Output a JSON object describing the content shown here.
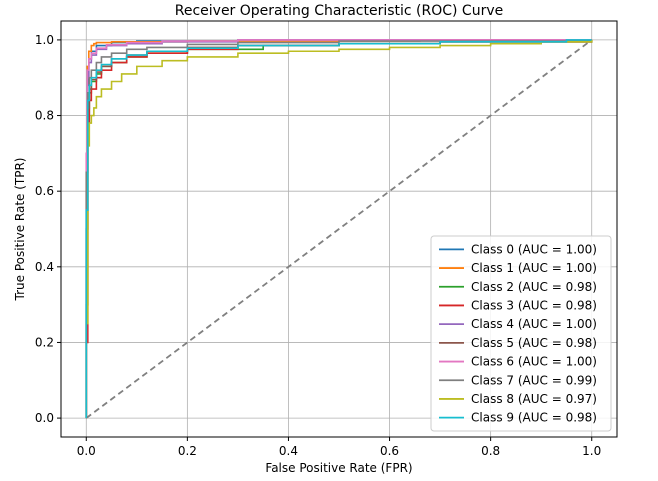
{
  "chart_data": {
    "type": "line",
    "title": "Receiver Operating Characteristic (ROC) Curve",
    "xlabel": "False Positive Rate (FPR)",
    "ylabel": "True Positive Rate (TPR)",
    "xlim": [
      -0.05,
      1.05
    ],
    "ylim": [
      -0.05,
      1.05
    ],
    "xticks": [
      0.0,
      0.2,
      0.4,
      0.6,
      0.8,
      1.0
    ],
    "yticks": [
      0.0,
      0.2,
      0.4,
      0.6,
      0.8,
      1.0
    ],
    "xtick_labels": [
      "0.0",
      "0.2",
      "0.4",
      "0.6",
      "0.8",
      "1.0"
    ],
    "ytick_labels": [
      "0.0",
      "0.2",
      "0.4",
      "0.6",
      "0.8",
      "1.0"
    ],
    "grid": true,
    "legend_position": "lower-right",
    "diagonal": {
      "color": "#808080",
      "style": "dashed",
      "x": [
        0,
        1
      ],
      "y": [
        0,
        1
      ]
    },
    "series": [
      {
        "name": "Class 0 (AUC = 1.00)",
        "color": "#1f77b4",
        "x": [
          0,
          0.0,
          0.002,
          0.005,
          0.01,
          0.02,
          0.05,
          0.1,
          0.3,
          1.0
        ],
        "y": [
          0,
          0.6,
          0.88,
          0.95,
          0.97,
          0.985,
          0.993,
          0.997,
          1.0,
          1.0
        ]
      },
      {
        "name": "Class 1 (AUC = 1.00)",
        "color": "#ff7f0e",
        "x": [
          0,
          0.0,
          0.002,
          0.005,
          0.01,
          0.015,
          0.02,
          0.05,
          0.2,
          0.6,
          0.66,
          1.0
        ],
        "y": [
          0,
          0.7,
          0.93,
          0.97,
          0.985,
          0.99,
          0.993,
          0.995,
          0.997,
          0.997,
          1.0,
          1.0
        ]
      },
      {
        "name": "Class 2 (AUC = 0.98)",
        "color": "#2ca02c",
        "x": [
          0,
          0.0,
          0.003,
          0.006,
          0.01,
          0.02,
          0.03,
          0.05,
          0.08,
          0.12,
          0.2,
          0.35,
          0.5,
          0.7,
          1.0
        ],
        "y": [
          0,
          0.3,
          0.8,
          0.86,
          0.89,
          0.91,
          0.93,
          0.94,
          0.955,
          0.965,
          0.975,
          0.985,
          0.99,
          0.995,
          1.0
        ]
      },
      {
        "name": "Class 3 (AUC = 0.98)",
        "color": "#d62728",
        "x": [
          0,
          0.0,
          0.003,
          0.006,
          0.01,
          0.02,
          0.03,
          0.05,
          0.08,
          0.12,
          0.2,
          0.3,
          0.5,
          0.7,
          1.0
        ],
        "y": [
          0,
          0.2,
          0.78,
          0.84,
          0.87,
          0.9,
          0.92,
          0.94,
          0.955,
          0.965,
          0.975,
          0.985,
          0.99,
          0.995,
          1.0
        ]
      },
      {
        "name": "Class 4 (AUC = 1.00)",
        "color": "#9467bd",
        "x": [
          0,
          0.0,
          0.002,
          0.005,
          0.01,
          0.02,
          0.04,
          0.08,
          0.15,
          0.3,
          1.0
        ],
        "y": [
          0,
          0.5,
          0.9,
          0.94,
          0.96,
          0.975,
          0.985,
          0.99,
          0.995,
          1.0,
          1.0
        ]
      },
      {
        "name": "Class 5 (AUC = 0.98)",
        "color": "#8c564b",
        "x": [
          0,
          0.0,
          0.003,
          0.006,
          0.01,
          0.02,
          0.03,
          0.05,
          0.08,
          0.12,
          0.2,
          0.3,
          0.5,
          0.7,
          1.0
        ],
        "y": [
          0,
          0.5,
          0.82,
          0.87,
          0.895,
          0.915,
          0.93,
          0.95,
          0.96,
          0.97,
          0.98,
          0.985,
          0.99,
          0.995,
          1.0
        ]
      },
      {
        "name": "Class 6 (AUC = 1.00)",
        "color": "#e377c2",
        "x": [
          0,
          0.0,
          0.002,
          0.005,
          0.01,
          0.02,
          0.04,
          0.08,
          0.15,
          0.3,
          1.0
        ],
        "y": [
          0,
          0.7,
          0.92,
          0.95,
          0.965,
          0.978,
          0.987,
          0.993,
          0.997,
          1.0,
          1.0
        ]
      },
      {
        "name": "Class 7 (AUC = 0.99)",
        "color": "#7f7f7f",
        "x": [
          0,
          0.0,
          0.003,
          0.006,
          0.01,
          0.02,
          0.03,
          0.05,
          0.08,
          0.12,
          0.2,
          0.3,
          0.5,
          1.0
        ],
        "y": [
          0,
          0.65,
          0.86,
          0.9,
          0.92,
          0.94,
          0.955,
          0.965,
          0.975,
          0.98,
          0.988,
          0.993,
          0.997,
          1.0
        ]
      },
      {
        "name": "Class 8 (AUC = 0.97)",
        "color": "#bcbd22",
        "x": [
          0,
          0.0,
          0.003,
          0.006,
          0.01,
          0.015,
          0.02,
          0.03,
          0.05,
          0.07,
          0.1,
          0.15,
          0.2,
          0.3,
          0.4,
          0.5,
          0.6,
          0.7,
          0.8,
          0.9,
          1.0
        ],
        "y": [
          0,
          0.25,
          0.72,
          0.78,
          0.8,
          0.82,
          0.85,
          0.87,
          0.89,
          0.91,
          0.93,
          0.945,
          0.955,
          0.965,
          0.97,
          0.975,
          0.98,
          0.985,
          0.99,
          0.995,
          1.0
        ]
      },
      {
        "name": "Class 9 (AUC = 0.98)",
        "color": "#17becf",
        "x": [
          0,
          0.0,
          0.003,
          0.006,
          0.01,
          0.02,
          0.03,
          0.05,
          0.08,
          0.12,
          0.2,
          0.3,
          0.5,
          0.7,
          0.95,
          1.0
        ],
        "y": [
          0,
          0.55,
          0.84,
          0.88,
          0.9,
          0.92,
          0.935,
          0.95,
          0.96,
          0.97,
          0.978,
          0.985,
          0.99,
          0.995,
          1.0,
          1.0
        ]
      }
    ]
  }
}
